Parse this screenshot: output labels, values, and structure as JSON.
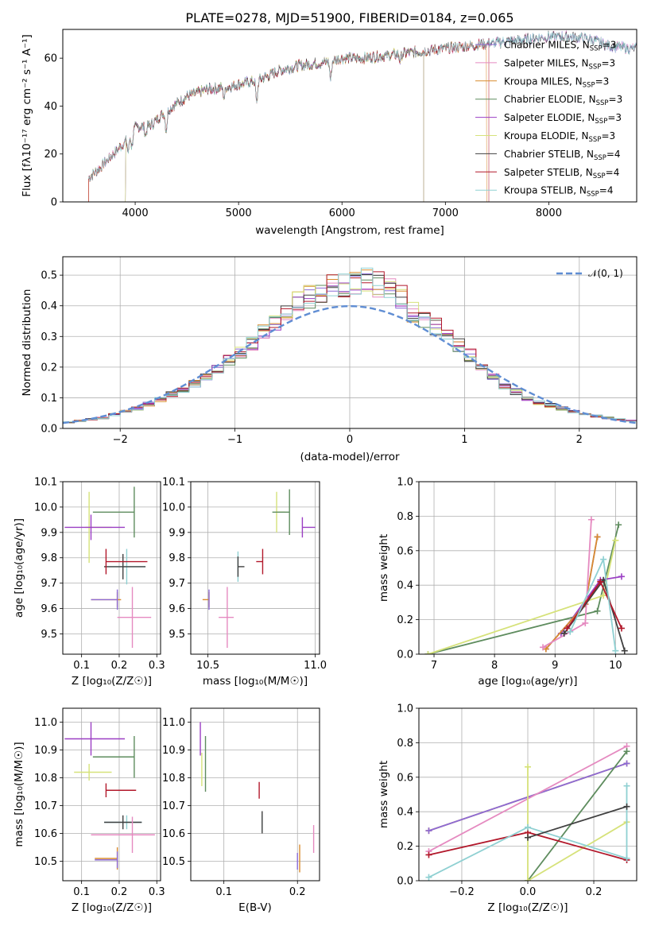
{
  "title": "PLATE=0278, MJD=51900, FIBERID=0184, z=0.065",
  "colors": {
    "Chabrier MILES": "#8c6bd6",
    "Salpeter MILES": "#e58ac0",
    "Kroupa MILES": "#d98b2f",
    "Chabrier ELODIE": "#5e8c5e",
    "Salpeter ELODIE": "#9b3fc4",
    "Kroupa ELODIE": "#d6e27a",
    "Chabrier STELIB": "#404040",
    "Salpeter STELIB": "#b2182b",
    "Kroupa STELIB": "#8fd0d2",
    "gauss": "#5f8dd3"
  },
  "chart_data": [
    {
      "type": "line",
      "xlabel": "wavelength [Angstrom, rest frame]",
      "ylabel": "Flux [fλ10⁻¹⁷ erg cm⁻² s⁻¹ A⁻¹]",
      "xlim": [
        3300,
        8850
      ],
      "ylim": [
        0,
        72
      ],
      "xticks": [
        "4000",
        "5000",
        "6000",
        "7000",
        "8000"
      ],
      "yticks": [
        "0",
        "20",
        "40",
        "60"
      ],
      "legend_position": "top-right",
      "legend": [
        {
          "label": "Chabrier MILES, N",
          "sub": "SSP",
          "suffix": "=3"
        },
        {
          "label": "Salpeter MILES, N",
          "sub": "SSP",
          "suffix": "=3"
        },
        {
          "label": "Kroupa MILES, N",
          "sub": "SSP",
          "suffix": "=3"
        },
        {
          "label": "Chabrier ELODIE, N",
          "sub": "SSP",
          "suffix": "=3"
        },
        {
          "label": "Salpeter ELODIE, N",
          "sub": "SSP",
          "suffix": "=3"
        },
        {
          "label": "Kroupa ELODIE, N",
          "sub": "SSP",
          "suffix": "=3"
        },
        {
          "label": "Chabrier STELIB, N",
          "sub": "SSP",
          "suffix": "=4"
        },
        {
          "label": "Salpeter STELIB, N",
          "sub": "SSP",
          "suffix": "=4"
        },
        {
          "label": "Kroupa STELIB, N",
          "sub": "SSP",
          "suffix": "=4"
        }
      ],
      "continuum": [
        [
          3550,
          10
        ],
        [
          3700,
          16
        ],
        [
          3900,
          25
        ],
        [
          4000,
          31
        ],
        [
          4150,
          32
        ],
        [
          4300,
          38
        ],
        [
          4500,
          44
        ],
        [
          4700,
          47
        ],
        [
          4900,
          48
        ],
        [
          5100,
          50
        ],
        [
          5200,
          51
        ],
        [
          5400,
          55
        ],
        [
          5600,
          57
        ],
        [
          5800,
          58
        ],
        [
          6000,
          60
        ],
        [
          6200,
          60
        ],
        [
          6400,
          61
        ],
        [
          6600,
          62
        ],
        [
          6800,
          63
        ],
        [
          7000,
          64
        ],
        [
          7200,
          65
        ],
        [
          7400,
          66
        ],
        [
          7600,
          67
        ],
        [
          7800,
          68
        ],
        [
          8000,
          69
        ],
        [
          8200,
          69
        ],
        [
          8400,
          68
        ],
        [
          8600,
          65
        ],
        [
          8800,
          64
        ]
      ],
      "absorption": [
        [
          3933,
          6
        ],
        [
          3968,
          6
        ],
        [
          4101,
          4
        ],
        [
          4300,
          8
        ],
        [
          4861,
          4
        ],
        [
          5175,
          10
        ],
        [
          5890,
          8
        ],
        [
          6563,
          3
        ]
      ]
    },
    {
      "type": "bar",
      "xlabel": "(data-model)/error",
      "ylabel": "Normed distribution",
      "xlim": [
        -2.5,
        2.5
      ],
      "ylim": [
        0,
        0.56
      ],
      "xticks": [
        "−2",
        "−1",
        "0",
        "1",
        "2"
      ],
      "yticks": [
        "0.0",
        "0.1",
        "0.2",
        "0.3",
        "0.4",
        "0.5"
      ],
      "bin_width": 0.1,
      "legend": "𝒩(0, 1)",
      "legend_position": "top-right",
      "base_profile": [
        0.02,
        0.025,
        0.03,
        0.035,
        0.045,
        0.055,
        0.065,
        0.08,
        0.095,
        0.11,
        0.125,
        0.145,
        0.165,
        0.19,
        0.22,
        0.25,
        0.28,
        0.31,
        0.345,
        0.38,
        0.41,
        0.43,
        0.45,
        0.46,
        0.465,
        0.47,
        0.48,
        0.47,
        0.46,
        0.43,
        0.38,
        0.35,
        0.33,
        0.3,
        0.27,
        0.24,
        0.2,
        0.17,
        0.14,
        0.12,
        0.1,
        0.085,
        0.075,
        0.065,
        0.055,
        0.045,
        0.04,
        0.035,
        0.03,
        0.025
      ]
    },
    {
      "type": "scatter",
      "xlabel": "Z [log₁₀(Z/Z☉)]",
      "ylabel": "age  [log₁₀(age/yr)]",
      "xlim": [
        0.05,
        0.31
      ],
      "ylim": [
        9.42,
        10.1
      ],
      "xticks": [
        "0.1",
        "0.2",
        "0.3"
      ],
      "yticks": [
        "9.5",
        "9.6",
        "9.7",
        "9.8",
        "9.9",
        "10.0",
        "10.1"
      ],
      "points": [
        {
          "model": "Kroupa ELODIE",
          "x": 0.12,
          "y": 9.92,
          "xerr": [
            0.01,
            0.06
          ],
          "yerr": 0.14
        },
        {
          "model": "Salpeter ELODIE",
          "x": 0.125,
          "y": 9.92,
          "xerr": [
            0.07,
            0.09
          ],
          "yerr": 0.05
        },
        {
          "model": "Chabrier ELODIE",
          "x": 0.24,
          "y": 9.98,
          "xerr": [
            0.11,
            0.0
          ],
          "yerr": 0.1
        },
        {
          "model": "Kroupa STELIB",
          "x": 0.22,
          "y": 9.765,
          "xerr": [
            0.06,
            0.05
          ],
          "yerr": 0.07
        },
        {
          "model": "Chabrier STELIB",
          "x": 0.21,
          "y": 9.765,
          "xerr": [
            0.05,
            0.06
          ],
          "yerr": 0.05
        },
        {
          "model": "Salpeter STELIB",
          "x": 0.165,
          "y": 9.785,
          "xerr": [
            0.0,
            0.11
          ],
          "yerr": 0.05
        },
        {
          "model": "Kroupa MILES",
          "x": 0.195,
          "y": 9.635,
          "xerr": [
            0.07,
            0.01
          ],
          "yerr": 0.03
        },
        {
          "model": "Chabrier MILES",
          "x": 0.195,
          "y": 9.635,
          "xerr": [
            0.07,
            0.0
          ],
          "yerr": 0.04
        },
        {
          "model": "Salpeter MILES",
          "x": 0.235,
          "y": 9.565,
          "xerr": [
            0.04,
            0.05
          ],
          "yerr": 0.12
        }
      ]
    },
    {
      "type": "scatter",
      "xlabel": "mass [log₁₀(M/M☉)]",
      "ylabel": "",
      "xlim": [
        10.42,
        11.02
      ],
      "ylim": [
        9.42,
        10.1
      ],
      "xticks": [
        "10.5",
        "11.0"
      ],
      "yticks": [
        "9.5",
        "9.6",
        "9.7",
        "9.8",
        "9.9",
        "10.0",
        "10.1"
      ],
      "points": [
        {
          "model": "Kroupa ELODIE",
          "x": 10.82,
          "y": 9.98,
          "xerr": [
            0.0,
            0.04
          ],
          "yerr": 0.08
        },
        {
          "model": "Chabrier ELODIE",
          "x": 10.88,
          "y": 9.98,
          "xerr": [
            0.08,
            0.0
          ],
          "yerr": 0.09
        },
        {
          "model": "Salpeter ELODIE",
          "x": 10.94,
          "y": 9.92,
          "xerr": [
            0.0,
            0.06
          ],
          "yerr": 0.04
        },
        {
          "model": "Kroupa STELIB",
          "x": 10.64,
          "y": 9.765,
          "xerr": [
            0.0,
            0.0
          ],
          "yerr": 0.06
        },
        {
          "model": "Chabrier STELIB",
          "x": 10.64,
          "y": 9.765,
          "xerr": [
            0.0,
            0.03
          ],
          "yerr": 0.04
        },
        {
          "model": "Salpeter STELIB",
          "x": 10.755,
          "y": 9.785,
          "xerr": [
            0.03,
            0.0
          ],
          "yerr": 0.05
        },
        {
          "model": "Kroupa MILES",
          "x": 10.505,
          "y": 9.635,
          "xerr": [
            0.03,
            0.0
          ],
          "yerr": 0.03
        },
        {
          "model": "Chabrier MILES",
          "x": 10.505,
          "y": 9.635,
          "xerr": [
            0.0,
            0.0
          ],
          "yerr": 0.04
        },
        {
          "model": "Salpeter MILES",
          "x": 10.59,
          "y": 9.565,
          "xerr": [
            0.04,
            0.03
          ],
          "yerr": 0.12
        }
      ]
    },
    {
      "type": "line",
      "xlabel": "age  [log₁₀(age/yr)]",
      "ylabel": "mass weight",
      "xlim": [
        6.75,
        10.35
      ],
      "ylim": [
        0,
        1
      ],
      "xticks": [
        "7",
        "8",
        "9",
        "10"
      ],
      "yticks": [
        "0.0",
        "0.2",
        "0.4",
        "0.6",
        "0.8",
        "1.0"
      ],
      "series": [
        {
          "model": "Chabrier ELODIE",
          "x": [
            6.9,
            9.7,
            10.05
          ],
          "y": [
            0.0,
            0.25,
            0.75
          ]
        },
        {
          "model": "Kroupa ELODIE",
          "x": [
            6.9,
            9.8,
            10.0
          ],
          "y": [
            0.0,
            0.34,
            0.66
          ]
        },
        {
          "model": "Salpeter ELODIE",
          "x": [
            9.1,
            9.75,
            10.1
          ],
          "y": [
            0.12,
            0.43,
            0.45
          ]
        },
        {
          "model": "Chabrier MILES",
          "x": [
            8.85,
            9.5,
            9.7
          ],
          "y": [
            0.03,
            0.29,
            0.68
          ]
        },
        {
          "model": "Kroupa MILES",
          "x": [
            8.85,
            9.5,
            9.7
          ],
          "y": [
            0.03,
            0.29,
            0.68
          ]
        },
        {
          "model": "Salpeter MILES",
          "x": [
            8.8,
            9.5,
            9.6
          ],
          "y": [
            0.04,
            0.18,
            0.78
          ]
        },
        {
          "model": "Chabrier STELIB",
          "x": [
            9.15,
            9.8,
            10.15
          ],
          "y": [
            0.12,
            0.43,
            0.02
          ]
        },
        {
          "model": "Salpeter STELIB",
          "x": [
            9.2,
            9.75,
            10.1
          ],
          "y": [
            0.15,
            0.42,
            0.15
          ]
        },
        {
          "model": "Kroupa STELIB",
          "x": [
            9.25,
            9.8,
            10.0
          ],
          "y": [
            0.13,
            0.55,
            0.02
          ]
        }
      ]
    },
    {
      "type": "scatter",
      "xlabel": "Z [log₁₀(Z/Z☉)]",
      "ylabel": "mass [log₁₀(M/M☉)]",
      "xlim": [
        0.05,
        0.31
      ],
      "ylim": [
        10.43,
        11.05
      ],
      "xticks": [
        "0.1",
        "0.2",
        "0.3"
      ],
      "yticks": [
        "10.5",
        "10.6",
        "10.7",
        "10.8",
        "10.9",
        "11.0"
      ],
      "points": [
        {
          "model": "Salpeter ELODIE",
          "x": 0.125,
          "y": 10.94,
          "xerr": [
            0.07,
            0.09
          ],
          "yerr": 0.06
        },
        {
          "model": "Chabrier ELODIE",
          "x": 0.24,
          "y": 10.875,
          "xerr": [
            0.11,
            0.0
          ],
          "yerr": 0.075
        },
        {
          "model": "Kroupa ELODIE",
          "x": 0.12,
          "y": 10.82,
          "xerr": [
            0.04,
            0.06
          ],
          "yerr": 0.03
        },
        {
          "model": "Salpeter STELIB",
          "x": 0.165,
          "y": 10.755,
          "xerr": [
            0.0,
            0.08
          ],
          "yerr": 0.025
        },
        {
          "model": "Kroupa STELIB",
          "x": 0.22,
          "y": 10.64,
          "xerr": [
            0.06,
            0.04
          ],
          "yerr": 0.025
        },
        {
          "model": "Chabrier STELIB",
          "x": 0.21,
          "y": 10.64,
          "xerr": [
            0.05,
            0.05
          ],
          "yerr": 0.025
        },
        {
          "model": "Salpeter MILES",
          "x": 0.235,
          "y": 10.595,
          "xerr": [
            0.11,
            0.06
          ],
          "yerr": 0.065
        },
        {
          "model": "Kroupa MILES",
          "x": 0.195,
          "y": 10.51,
          "xerr": [
            0.06,
            0.0
          ],
          "yerr": 0.04
        },
        {
          "model": "Chabrier MILES",
          "x": 0.195,
          "y": 10.505,
          "xerr": [
            0.06,
            0.0
          ],
          "yerr": 0.03
        }
      ]
    },
    {
      "type": "scatter",
      "xlabel": "E(B-V)",
      "ylabel": "",
      "xlim": [
        0.055,
        0.23
      ],
      "ylim": [
        10.43,
        11.05
      ],
      "xticks": [
        "0.1",
        "0.2"
      ],
      "yticks": [
        "10.5",
        "10.6",
        "10.7",
        "10.8",
        "10.9",
        "11.0"
      ],
      "points": [
        {
          "model": "Salpeter ELODIE",
          "x": 0.068,
          "y": 10.94,
          "yerr": 0.06
        },
        {
          "model": "Chabrier ELODIE",
          "x": 0.075,
          "y": 10.85,
          "yerr": 0.1
        },
        {
          "model": "Kroupa ELODIE",
          "x": 0.07,
          "y": 10.83,
          "yerr": 0.06
        },
        {
          "model": "Salpeter STELIB",
          "x": 0.148,
          "y": 10.755,
          "yerr": 0.03
        },
        {
          "model": "Kroupa STELIB",
          "x": 0.152,
          "y": 10.635,
          "yerr": 0.03
        },
        {
          "model": "Chabrier STELIB",
          "x": 0.152,
          "y": 10.64,
          "yerr": 0.04
        },
        {
          "model": "Salpeter MILES",
          "x": 0.222,
          "y": 10.58,
          "yerr": 0.05
        },
        {
          "model": "Kroupa MILES",
          "x": 0.203,
          "y": 10.51,
          "yerr": 0.05
        },
        {
          "model": "Chabrier MILES",
          "x": 0.2,
          "y": 10.5,
          "yerr": 0.03
        }
      ]
    },
    {
      "type": "line",
      "xlabel": "Z [log₁₀(Z/Z☉)]",
      "ylabel": "mass weight",
      "xlim": [
        -0.33,
        0.33
      ],
      "ylim": [
        0,
        1
      ],
      "xticks": [
        "−0.2",
        "0.0",
        "0.2"
      ],
      "yticks": [
        "0.0",
        "0.2",
        "0.4",
        "0.6",
        "0.8",
        "1.0"
      ],
      "series": [
        {
          "model": "Kroupa MILES",
          "x": [
            -0.3,
            0.3
          ],
          "y": [
            0.29,
            0.68
          ]
        },
        {
          "model": "Chabrier MILES",
          "x": [
            -0.3,
            0.3
          ],
          "y": [
            0.29,
            0.68
          ]
        },
        {
          "model": "Salpeter MILES",
          "x": [
            -0.3,
            0.3
          ],
          "y": [
            0.17,
            0.78
          ]
        },
        {
          "model": "Chabrier ELODIE",
          "x": [
            0.0,
            0.3
          ],
          "y": [
            0.0,
            0.75
          ]
        },
        {
          "model": "Kroupa ELODIE",
          "x": [
            0.0,
            0.0,
            0.3
          ],
          "y": [
            0.66,
            0.0,
            0.34
          ]
        },
        {
          "model": "Salpeter STELIB",
          "x": [
            -0.3,
            0.0,
            0.3
          ],
          "y": [
            0.15,
            0.28,
            0.12
          ]
        },
        {
          "model": "Kroupa STELIB",
          "x": [
            -0.3,
            0.0,
            0.3,
            0.3
          ],
          "y": [
            0.02,
            0.31,
            0.13,
            0.55
          ]
        },
        {
          "model": "Chabrier STELIB",
          "x": [
            0.0,
            0.3
          ],
          "y": [
            0.25,
            0.43
          ]
        }
      ]
    }
  ]
}
